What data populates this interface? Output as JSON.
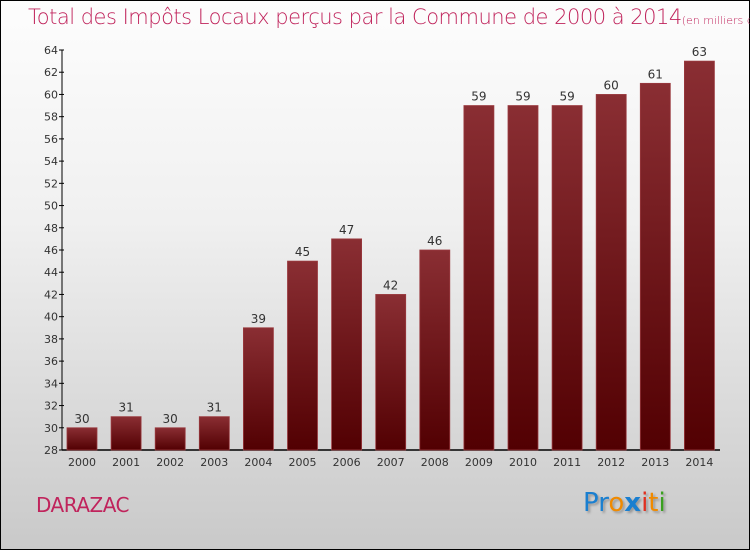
{
  "chart_data": {
    "type": "bar",
    "title": "Total des Impôts Locaux perçus par la Commune de 2000 à 2014",
    "subtitle": "(en milliers d'€)",
    "categories": [
      "2000",
      "2001",
      "2002",
      "2003",
      "2004",
      "2005",
      "2006",
      "2007",
      "2008",
      "2009",
      "2010",
      "2011",
      "2012",
      "2013",
      "2014"
    ],
    "values": [
      30,
      31,
      30,
      31,
      39,
      45,
      47,
      42,
      46,
      59,
      59,
      59,
      60,
      61,
      63
    ],
    "ylim": [
      28,
      64
    ],
    "yticks": [
      28,
      30,
      32,
      34,
      36,
      38,
      40,
      42,
      44,
      46,
      48,
      50,
      52,
      54,
      56,
      58,
      60,
      62,
      64
    ],
    "xlabel": "",
    "ylabel": "",
    "grid": false,
    "bar_color": "#6e1418"
  },
  "commune": "DARAZAC",
  "logo": {
    "letters": [
      "P",
      "r",
      "o",
      "x",
      "i",
      "t",
      "i"
    ],
    "colors": [
      "#1a7fd0",
      "#1a7fd0",
      "#f08a00",
      "#1a7fd0",
      "#e03020",
      "#f08a00",
      "#3aa020"
    ]
  }
}
